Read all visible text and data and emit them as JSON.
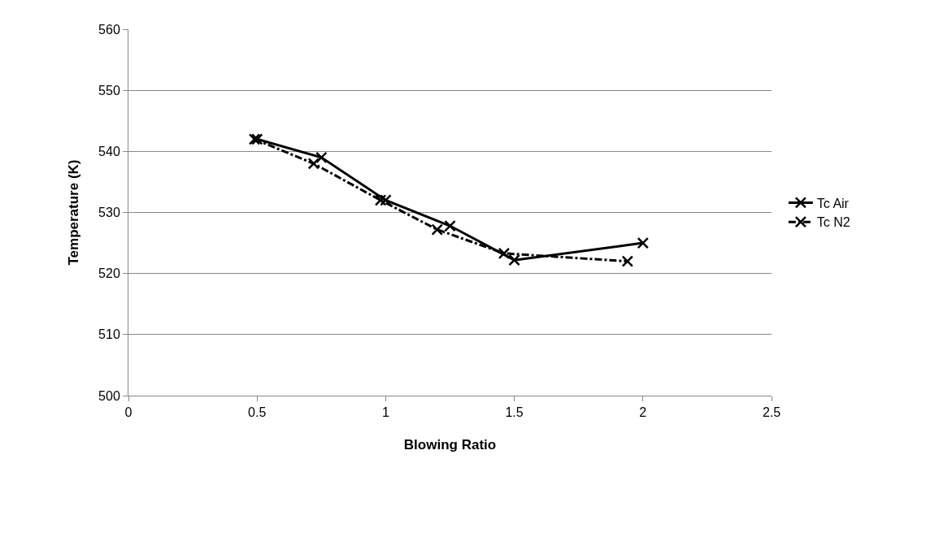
{
  "chart_data": {
    "type": "line",
    "xlabel": "Blowing Ratio",
    "ylabel": "Temperature (K)",
    "xlim": [
      0,
      2.5
    ],
    "xticks": [
      0,
      0.5,
      1,
      1.5,
      2,
      2.5
    ],
    "ylim": [
      500,
      560
    ],
    "yticks": [
      500,
      510,
      520,
      530,
      540,
      550,
      560
    ],
    "grid": "y",
    "legend": "right",
    "marker": "cross",
    "series": [
      {
        "name": "Tc Air",
        "color": "#000000",
        "line_style": "solid",
        "x": [
          0.5,
          0.75,
          1.0,
          1.25,
          1.5,
          2.0
        ],
        "values": [
          542,
          539,
          532,
          527.8,
          522.2,
          525
        ]
      },
      {
        "name": "Tc N2",
        "color": "#000000",
        "line_style": "dashdot",
        "x": [
          0.49,
          0.72,
          0.98,
          1.2,
          1.46,
          1.94
        ],
        "values": [
          542,
          538,
          532,
          527.2,
          523.3,
          522
        ]
      }
    ]
  }
}
